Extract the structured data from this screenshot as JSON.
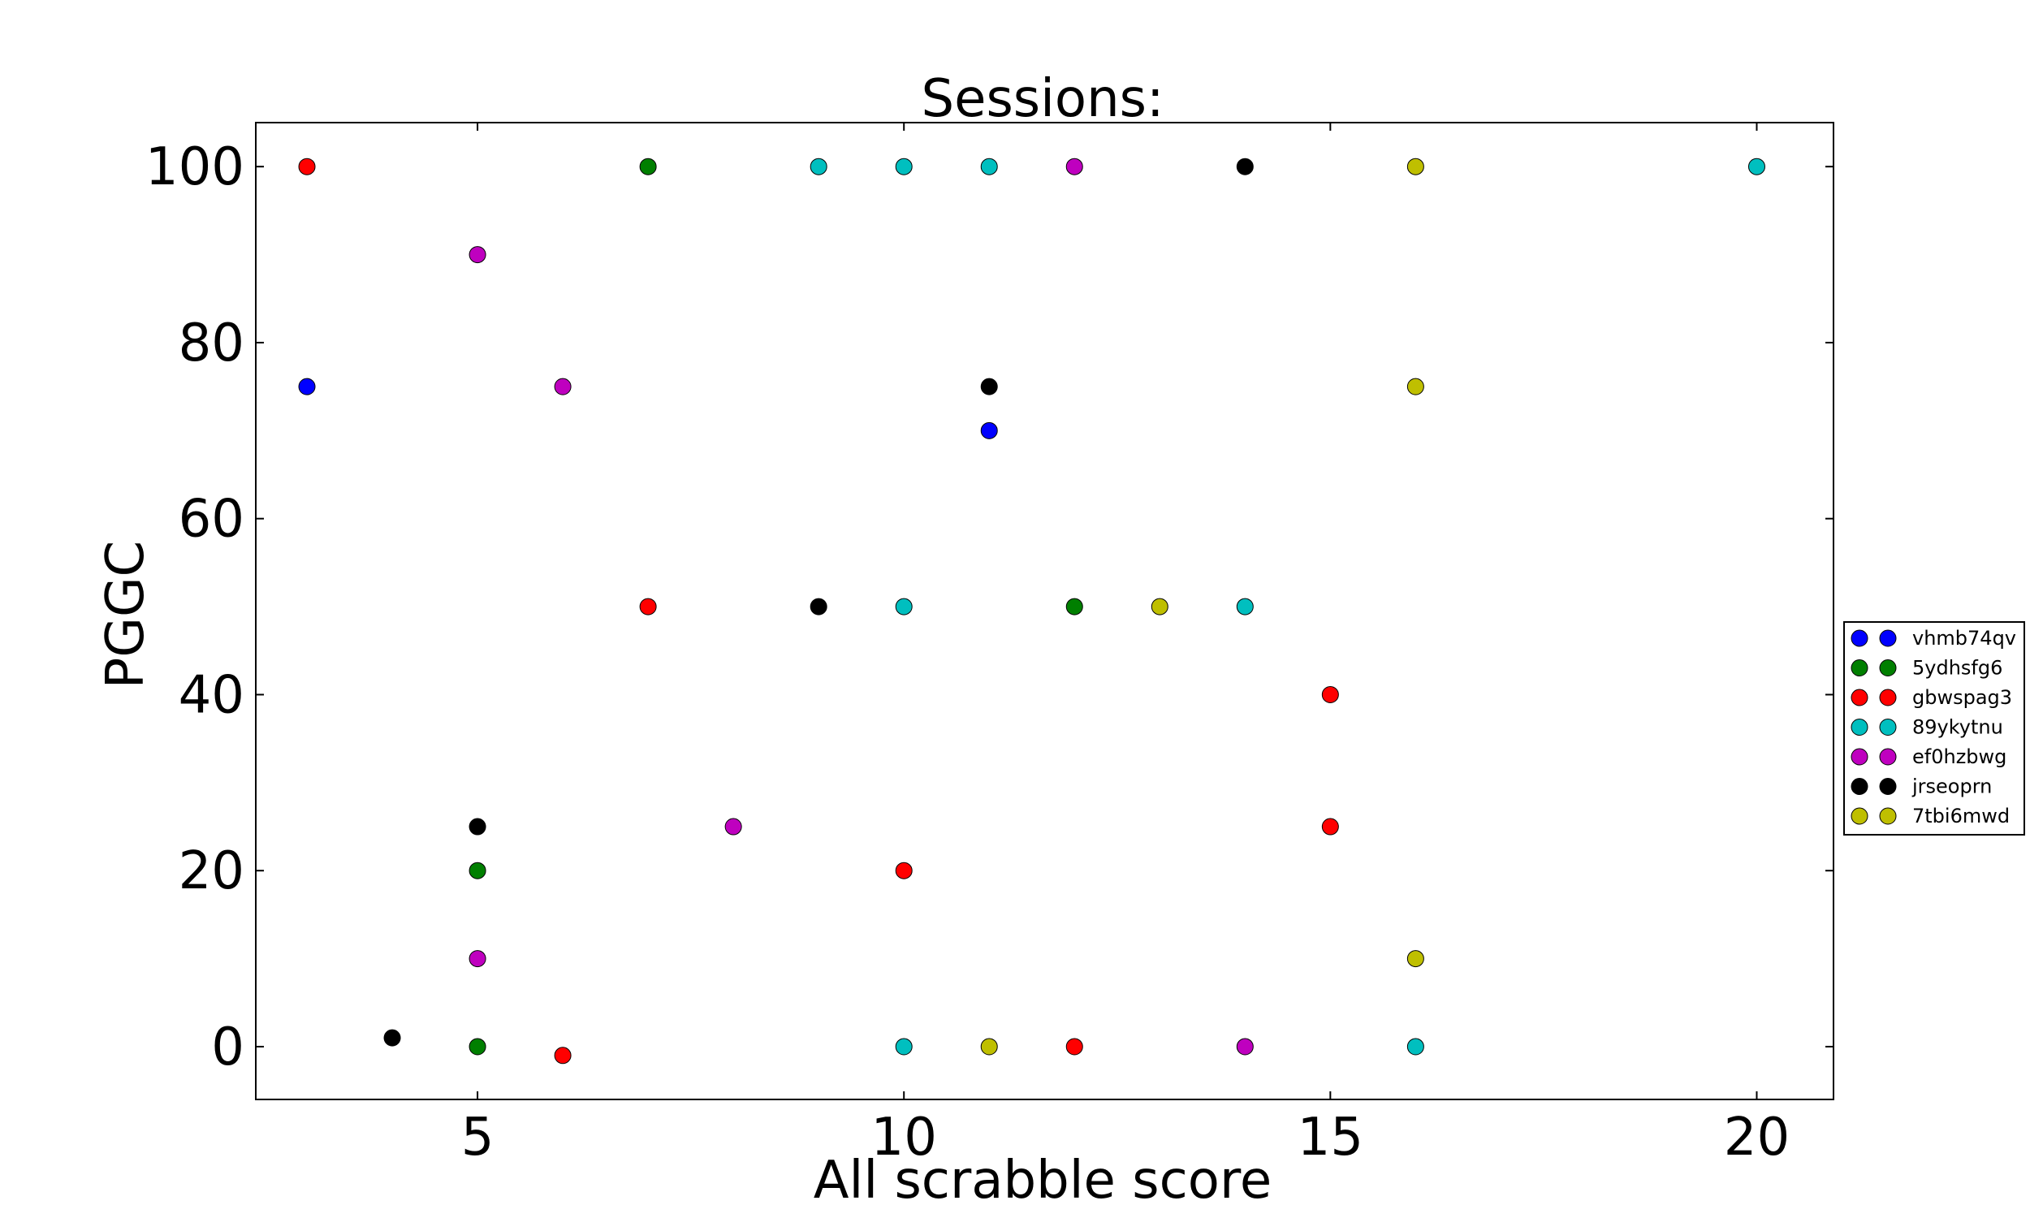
{
  "chart_data": {
    "type": "scatter",
    "title": "Sessions:",
    "xlabel": "All scrabble score",
    "ylabel": "PGGC",
    "xlim": [
      2.4,
      20.9
    ],
    "ylim": [
      -6,
      105
    ],
    "xticks": [
      "5",
      "10",
      "15",
      "20"
    ],
    "yticks": [
      "0",
      "20",
      "40",
      "60",
      "80",
      "100"
    ],
    "grid": false,
    "legend_position": "right",
    "series": [
      {
        "name": "vhmb74qv",
        "color": "#0000ff",
        "points": [
          [
            3,
            75
          ],
          [
            11,
            70
          ]
        ]
      },
      {
        "name": "5ydhsfg6",
        "color": "#007f00",
        "points": [
          [
            7,
            100
          ],
          [
            5,
            20
          ],
          [
            5,
            0
          ],
          [
            12,
            50
          ]
        ]
      },
      {
        "name": "gbwspag3",
        "color": "#ff0000",
        "points": [
          [
            3,
            100
          ],
          [
            7,
            50
          ],
          [
            6,
            -1
          ],
          [
            10,
            20
          ],
          [
            12,
            0
          ],
          [
            15,
            40
          ],
          [
            15,
            25
          ]
        ]
      },
      {
        "name": "89ykytnu",
        "color": "#00bfbf",
        "points": [
          [
            9,
            100
          ],
          [
            10,
            100
          ],
          [
            11,
            100
          ],
          [
            20,
            100
          ],
          [
            10,
            50
          ],
          [
            14,
            50
          ],
          [
            10,
            0
          ],
          [
            16,
            0
          ]
        ]
      },
      {
        "name": "ef0hzbwg",
        "color": "#bf00bf",
        "points": [
          [
            5,
            90
          ],
          [
            6,
            75
          ],
          [
            12,
            100
          ],
          [
            8,
            25
          ],
          [
            5,
            10
          ],
          [
            14,
            0
          ]
        ]
      },
      {
        "name": "jrseoprn",
        "color": "#000000",
        "points": [
          [
            14,
            100
          ],
          [
            11,
            75
          ],
          [
            9,
            50
          ],
          [
            5,
            25
          ],
          [
            4,
            1
          ]
        ]
      },
      {
        "name": "7tbi6mwd",
        "color": "#bfbf00",
        "points": [
          [
            16,
            100
          ],
          [
            16,
            75
          ],
          [
            13,
            50
          ],
          [
            16,
            10
          ],
          [
            11,
            0
          ]
        ]
      }
    ]
  }
}
